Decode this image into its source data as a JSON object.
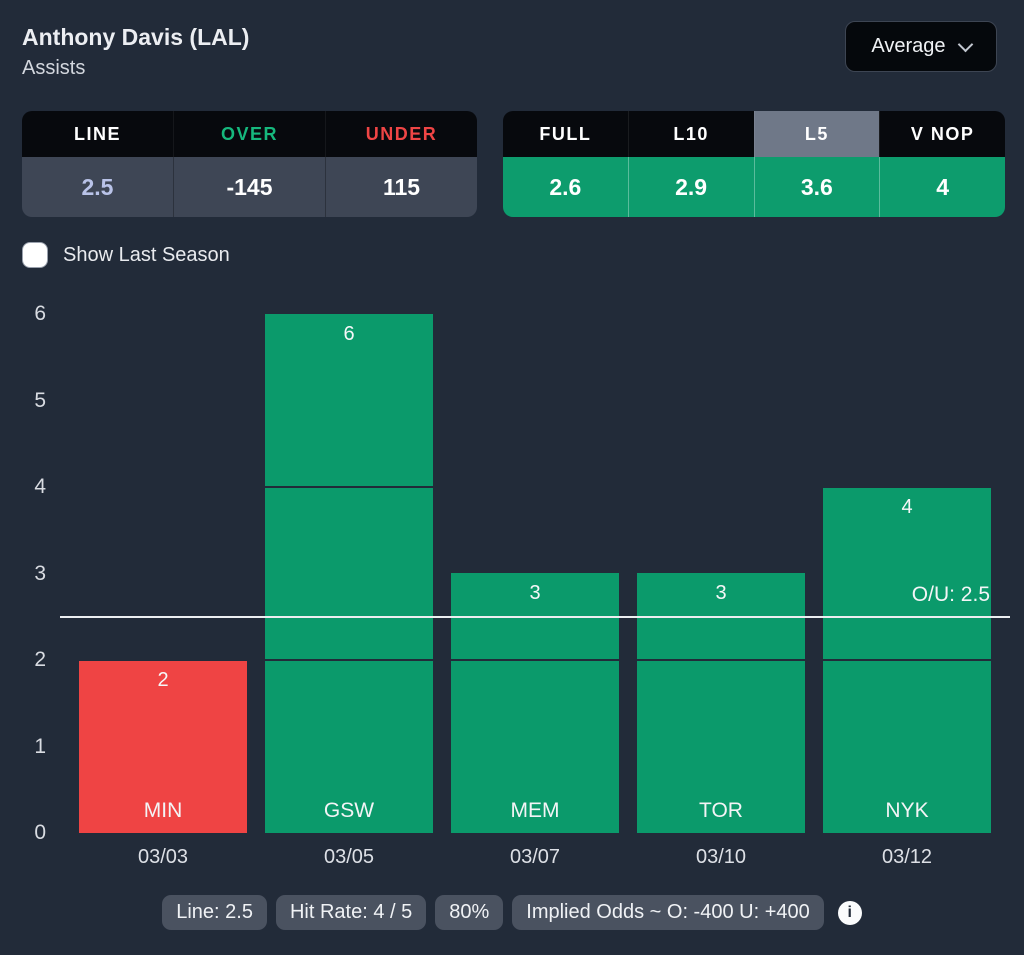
{
  "header": {
    "title": "Anthony Davis (LAL)",
    "subtitle": "Assists",
    "average_dropdown": "Average"
  },
  "odds_table": {
    "headers": [
      {
        "label": "LINE",
        "color": "#ffffff"
      },
      {
        "label": "OVER",
        "color": "#16b87d"
      },
      {
        "label": "UNDER",
        "color": "#ef4545"
      }
    ],
    "values": [
      {
        "text": "2.5",
        "color": "#b9c3e8"
      },
      {
        "text": "-145",
        "color": "#ffffff"
      },
      {
        "text": "115",
        "color": "#ffffff"
      }
    ]
  },
  "splits_table": {
    "headers": [
      "FULL",
      "L10",
      "L5",
      "V NOP"
    ],
    "selected_index": 2,
    "selected_bg": "#6f7888",
    "values": [
      "2.6",
      "2.9",
      "3.6",
      "4"
    ]
  },
  "controls": {
    "show_last_season_label": "Show Last Season",
    "checked": false
  },
  "chart_data": {
    "type": "bar",
    "categories": [
      "MIN",
      "GSW",
      "MEM",
      "TOR",
      "NYK"
    ],
    "dates": [
      "03/03",
      "03/05",
      "03/07",
      "03/10",
      "03/12"
    ],
    "values": [
      2,
      6,
      3,
      3,
      4
    ],
    "bar_colors": [
      "#ef4444",
      "#0b9a6b",
      "#0b9a6b",
      "#0b9a6b",
      "#0b9a6b"
    ],
    "reference_line": {
      "value": 2.5,
      "label": "O/U: 2.5",
      "color": "#eceef0"
    },
    "yticks": [
      0,
      1,
      2,
      3,
      4,
      5,
      6
    ],
    "ylim": [
      0,
      6
    ],
    "gridlines_over_bars": [
      2,
      4
    ],
    "xlabel": "",
    "ylabel": "",
    "legend": null
  },
  "footer": {
    "badges": [
      "Line: 2.5",
      "Hit Rate: 4 / 5",
      "80%",
      "Implied Odds ~ O: -400 U: +400"
    ],
    "info_icon": "i"
  },
  "colors": {
    "background": "#222b39",
    "table_header_bg": "#07090d",
    "odds_value_bg": "#3e4655",
    "splits_value_bg": "#0d9c6d",
    "selected_tab_bg": "#6f7888",
    "bar_green": "#0b9a6b",
    "bar_red": "#ef4444",
    "over_green": "#16b87d",
    "under_red": "#ef4545"
  }
}
